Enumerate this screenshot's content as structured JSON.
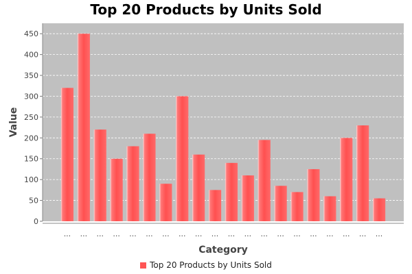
{
  "chart_data": {
    "type": "bar",
    "title": "Top 20 Products by Units Sold",
    "xlabel": "Category",
    "ylabel": "Value",
    "ylim": [
      0,
      475
    ],
    "yticks": [
      0,
      50,
      100,
      150,
      200,
      250,
      300,
      350,
      400,
      450
    ],
    "categories": [
      "...",
      "...",
      "...",
      "...",
      "...",
      "...",
      "...",
      "...",
      "...",
      "...",
      "...",
      "...",
      "...",
      "...",
      "...",
      "...",
      "...",
      "...",
      "...",
      "..."
    ],
    "series": [
      {
        "name": "Top 20 Products by Units Sold",
        "color": "#ff5555",
        "values": [
          320,
          450,
          220,
          150,
          180,
          210,
          90,
          300,
          160,
          75,
          140,
          110,
          195,
          85,
          70,
          125,
          60,
          200,
          230,
          55
        ]
      }
    ],
    "grid": true,
    "legend_position": "bottom",
    "plot_background": "#c0c0c0"
  }
}
